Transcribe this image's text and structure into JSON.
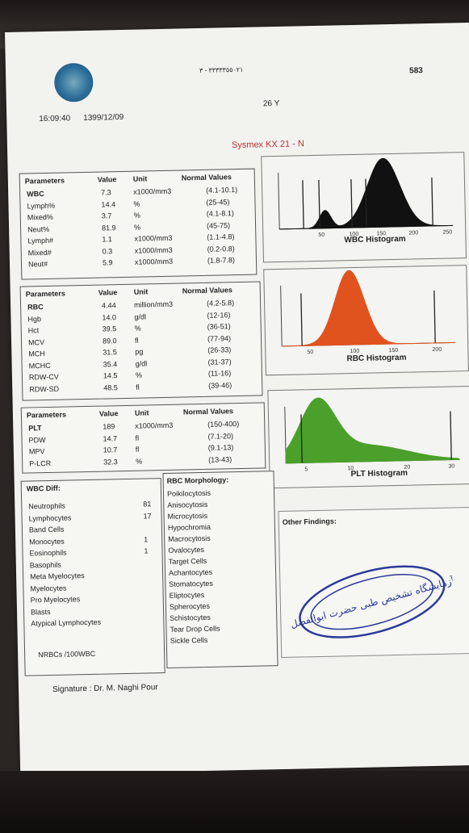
{
  "header": {
    "time": "16:09:40",
    "date": "1399/12/09",
    "age": "26 Y",
    "page_number": "583",
    "instrument": "Sysmex KX 21 - N",
    "phone": "٣٣٣٣٣٥٥٠٢١ - ٣"
  },
  "wbc_table": {
    "headers": [
      "Parameters",
      "Value",
      "Unit",
      "Normal Values"
    ],
    "rows": [
      {
        "param": "WBC",
        "value": "7.3",
        "unit": "x1000/mm3",
        "normal": "(4.1-10.1)"
      },
      {
        "param": "Lymph%",
        "value": "14.4",
        "unit": "%",
        "normal": "(25-45)"
      },
      {
        "param": "Mixed%",
        "value": "3.7",
        "unit": "%",
        "normal": "(4.1-8.1)"
      },
      {
        "param": "Neut%",
        "value": "81.9",
        "unit": "%",
        "normal": "(45-75)"
      },
      {
        "param": "Lymph#",
        "value": "1.1",
        "unit": "x1000/mm3",
        "normal": "(1.1-4.8)"
      },
      {
        "param": "Mixed#",
        "value": "0.3",
        "unit": "x1000/mm3",
        "normal": "(0.2-0.8)"
      },
      {
        "param": "Neut#",
        "value": "5.9",
        "unit": "x1000/mm3",
        "normal": "(1.8-7.8)"
      }
    ]
  },
  "rbc_table": {
    "headers": [
      "Parameters",
      "Value",
      "Unit",
      "Normal Values"
    ],
    "rows": [
      {
        "param": "RBC",
        "value": "4.44",
        "unit": "million/mm3",
        "normal": "(4.2-5.8)"
      },
      {
        "param": "Hgb",
        "value": "14.0",
        "unit": "g/dl",
        "normal": "(12-16)"
      },
      {
        "param": "Hct",
        "value": "39.5",
        "unit": "%",
        "normal": "(36-51)"
      },
      {
        "param": "MCV",
        "value": "89.0",
        "unit": "fl",
        "normal": "(77-94)"
      },
      {
        "param": "MCH",
        "value": "31.5",
        "unit": "pg",
        "normal": "(26-33)"
      },
      {
        "param": "MCHC",
        "value": "35.4",
        "unit": "g/dl",
        "normal": "(31-37)"
      },
      {
        "param": "RDW-CV",
        "value": "14.5",
        "unit": "%",
        "normal": "(11-16)"
      },
      {
        "param": "RDW-SD",
        "value": "48.5",
        "unit": "fl",
        "normal": "(39-46)"
      }
    ]
  },
  "plt_table": {
    "headers": [
      "Parameters",
      "Value",
      "Unit",
      "Normal Values"
    ],
    "rows": [
      {
        "param": "PLT",
        "value": "189",
        "unit": "x1000/mm3",
        "normal": "(150-400)"
      },
      {
        "param": "PDW",
        "value": "14.7",
        "unit": "fl",
        "normal": "(7.1-20)"
      },
      {
        "param": "MPV",
        "value": "10.7",
        "unit": "fl",
        "normal": "(9.1-13)"
      },
      {
        "param": "P-LCR",
        "value": "32.3",
        "unit": "%",
        "normal": "(13-43)"
      }
    ]
  },
  "histograms": {
    "wbc": {
      "title": "WBC Histogram",
      "ticks": [
        "50",
        "100",
        "150",
        "200",
        "250"
      ],
      "color": "#111111"
    },
    "rbc": {
      "title": "RBC Histogram",
      "ticks": [
        "50",
        "100",
        "150",
        "200"
      ],
      "color": "#e0531e"
    },
    "plt": {
      "title": "PLT Histogram",
      "ticks": [
        "5",
        "10",
        "20",
        "30"
      ],
      "color": "#4aa02a"
    }
  },
  "wbc_diff": {
    "title": "WBC Diff:",
    "items": [
      {
        "label": "Neutrophils",
        "value": "81"
      },
      {
        "label": "Lymphocytes",
        "value": "17"
      },
      {
        "label": "Band Cells",
        "value": ""
      },
      {
        "label": "Monocytes",
        "value": "1"
      },
      {
        "label": "Eosinophils",
        "value": "1"
      },
      {
        "label": "Basophils",
        "value": ""
      },
      {
        "label": "Meta Myelocytes",
        "value": ""
      },
      {
        "label": "Myelocytes",
        "value": ""
      },
      {
        "label": "Pro Myelocytes",
        "value": ""
      },
      {
        "label": "Blasts",
        "value": ""
      },
      {
        "label": "Atypical Lymphocytes",
        "value": ""
      }
    ],
    "nrbc": "NRBCs /100WBC"
  },
  "rbc_morphology": {
    "title": "RBC Morphology:",
    "items": [
      "Poikilocytosis",
      "Anisocytosis",
      "Microcytosis",
      "Hypochromia",
      "Macrocytosis",
      "Ovalocytes",
      "Target Cells",
      "Achantocytes",
      "Stomatocytes",
      "Eliptocytes",
      "Spherocytes",
      "Schistocytes",
      "Tear Drop Cells",
      "Sickle Cells"
    ]
  },
  "other_findings": {
    "title": "Other Findings:"
  },
  "signature": "Signature : Dr. M. Naghi Pour",
  "stamp_text": "آزمایشگاه تشخیص طبی حضرت ابوالفضل"
}
